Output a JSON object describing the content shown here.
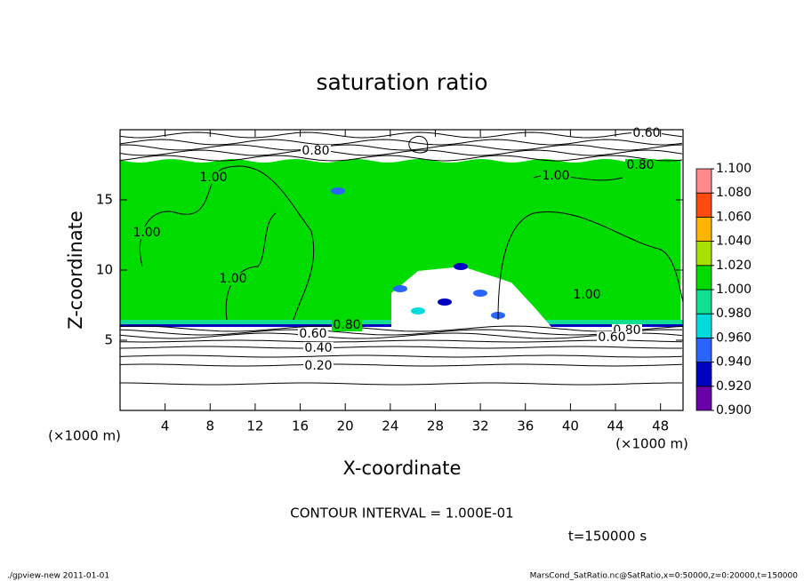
{
  "chart_data": {
    "type": "contour",
    "title": "saturation ratio",
    "xlabel": "X-coordinate",
    "ylabel": "Z-coordinate",
    "x_unit_left": "(×1000 m)",
    "x_unit_right": "(×1000 m)",
    "xlim": [
      0,
      50
    ],
    "xticks": [
      4,
      8,
      12,
      16,
      20,
      24,
      28,
      32,
      36,
      40,
      44,
      48
    ],
    "ylim": [
      0,
      20
    ],
    "yticks": [
      5,
      10,
      15
    ],
    "contour_labels": [
      "0.60",
      "0.80",
      "0.80",
      "1.00",
      "1.00",
      "1.00",
      "1.00",
      "1.00",
      "0.80",
      "0.60",
      "0.40",
      "0.20",
      "0.80",
      "0.60"
    ],
    "colorbar": {
      "ticks": [
        {
          "value": 0.9,
          "label": "0.900"
        },
        {
          "value": 0.92,
          "label": "0.920"
        },
        {
          "value": 0.94,
          "label": "0.940"
        },
        {
          "value": 0.96,
          "label": "0.960"
        },
        {
          "value": 0.98,
          "label": "0.980"
        },
        {
          "value": 1.0,
          "label": "1.000"
        },
        {
          "value": 1.02,
          "label": "1.020"
        },
        {
          "value": 1.04,
          "label": "1.040"
        },
        {
          "value": 1.06,
          "label": "1.060"
        },
        {
          "value": 1.08,
          "label": "1.080"
        },
        {
          "value": 1.1,
          "label": "1.100"
        }
      ],
      "colors": [
        "#6a00a8",
        "#0000c0",
        "#2a64ff",
        "#00dcdc",
        "#10e090",
        "#00dc00",
        "#a8e000",
        "#ffb400",
        "#ff4a10",
        "#ff8a8a"
      ]
    },
    "contour_interval": "CONTOUR INTERVAL = 1.000E-01",
    "time_label": "t=150000 s",
    "footer_left": "./gpview-new   2011-01-01",
    "footer_right": "MarsCond_SatRatio.nc@SatRatio,x=0:50000,z=0:20000,t=150000"
  }
}
